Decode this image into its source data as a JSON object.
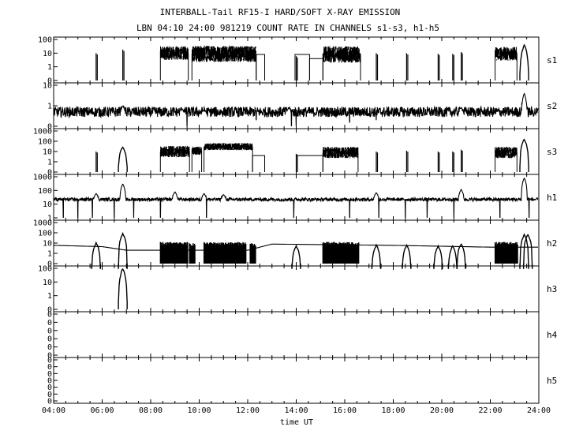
{
  "chart_data": {
    "type": "line",
    "title": "INTERBALL-Tail RF15-I HARD/SOFT X-RAY EMISSION",
    "subtitle": "LBN 04:10 24:00 981219  COUNT RATE IN CHANNELS s1-s3, h1-h5",
    "xlabel": "time UT",
    "xlim": [
      4,
      24
    ],
    "x_ticks": [
      4,
      6,
      8,
      10,
      12,
      14,
      16,
      18,
      20,
      22,
      24
    ],
    "x_tick_labels": [
      "04:00",
      "06:00",
      "08:00",
      "10:00",
      "12:00",
      "14:00",
      "16:00",
      "18:00",
      "20:00",
      "22:00",
      "24:00"
    ],
    "y_scale": "log",
    "grid": false,
    "panels": [
      {
        "name": "s1",
        "y_tick_labels": [
          "100",
          "10",
          "1",
          "0"
        ],
        "baseline": "0",
        "noise_segments": [
          [
            8.4,
            9.55,
            10,
            0.5
          ],
          [
            9.7,
            12.35,
            9,
            0.6
          ],
          [
            15.1,
            16.65,
            8,
            0.6
          ],
          [
            22.2,
            23.1,
            9,
            0.5
          ]
        ],
        "flat_segments": [
          [
            12.35,
            12.7,
            8
          ],
          [
            13.95,
            14.55,
            8
          ],
          [
            14.55,
            15.1,
            4
          ]
        ],
        "spikes": [
          [
            5.75,
            10
          ],
          [
            6.85,
            18
          ],
          [
            14.0,
            6
          ],
          [
            17.3,
            10
          ],
          [
            18.55,
            10
          ],
          [
            19.85,
            9
          ],
          [
            20.45,
            9
          ],
          [
            20.8,
            12
          ],
          [
            23.4,
            40
          ]
        ]
      },
      {
        "name": "s2",
        "y_tick_labels": [
          "10",
          "1",
          "0"
        ],
        "baseline": "continuous",
        "base_level": 5,
        "noise_amp": 0.25,
        "bumps": [
          [
            6.85,
            10
          ],
          [
            9.3,
            7
          ],
          [
            10.2,
            6
          ],
          [
            12.9,
            3
          ],
          [
            13.7,
            8
          ],
          [
            20.8,
            8
          ],
          [
            23.4,
            40
          ]
        ],
        "dropouts": [
          [
            7.8,
            3
          ],
          [
            9.5,
            1
          ],
          [
            12.35,
            2
          ],
          [
            13.8,
            1
          ],
          [
            14.0,
            1
          ],
          [
            16.2,
            1.5
          ],
          [
            17.3,
            2
          ]
        ]
      },
      {
        "name": "s3",
        "y_tick_labels": [
          "1000",
          "100",
          "10",
          "1",
          "0"
        ],
        "baseline": "0",
        "noise_segments": [
          [
            8.4,
            9.6,
            10,
            0.55
          ],
          [
            9.7,
            10.1,
            12,
            0.4
          ],
          [
            10.2,
            12.2,
            30,
            0.35
          ],
          [
            15.1,
            16.55,
            8,
            0.55
          ],
          [
            22.2,
            23.1,
            8,
            0.55
          ]
        ],
        "flat_segments": [
          [
            12.2,
            12.7,
            4
          ],
          [
            14.0,
            15.1,
            4
          ]
        ],
        "spikes": [
          [
            5.75,
            10
          ],
          [
            6.85,
            30
          ],
          [
            14.0,
            6
          ],
          [
            17.3,
            10
          ],
          [
            18.55,
            12
          ],
          [
            19.85,
            10
          ],
          [
            20.45,
            10
          ],
          [
            20.8,
            15
          ],
          [
            23.4,
            150
          ]
        ]
      },
      {
        "name": "h1",
        "y_tick_labels": [
          "1000",
          "100",
          "10",
          "1"
        ],
        "baseline": "continuous",
        "base_level": 22,
        "noise_amp": 0.12,
        "bumps": [
          [
            5.75,
            60
          ],
          [
            6.85,
            300
          ],
          [
            9.0,
            80
          ],
          [
            10.2,
            60
          ],
          [
            11.0,
            50
          ],
          [
            17.3,
            70
          ],
          [
            20.8,
            120
          ],
          [
            23.4,
            800
          ]
        ],
        "dropouts": [
          [
            4.4,
            1
          ],
          [
            5.0,
            1
          ],
          [
            5.6,
            1
          ],
          [
            6.5,
            1
          ],
          [
            7.3,
            1
          ],
          [
            8.4,
            1
          ],
          [
            10.3,
            1
          ],
          [
            13.9,
            1
          ],
          [
            16.2,
            1
          ],
          [
            17.4,
            1
          ],
          [
            18.5,
            1
          ],
          [
            19.4,
            1
          ],
          [
            20.5,
            1
          ],
          [
            22.4,
            1
          ],
          [
            23.6,
            1
          ]
        ]
      },
      {
        "name": "h2",
        "y_tick_labels": [
          "1000",
          "100",
          "10",
          "1",
          "0"
        ],
        "baseline": "trend",
        "trend": [
          [
            4,
            60
          ],
          [
            6,
            45
          ],
          [
            7,
            20
          ],
          [
            12,
            20
          ],
          [
            13,
            80
          ],
          [
            18,
            60
          ],
          [
            22,
            40
          ],
          [
            24,
            40
          ]
        ],
        "burst_segments": [
          [
            8.4,
            9.5,
            100,
            22
          ],
          [
            9.6,
            9.8,
            80,
            4
          ],
          [
            10.2,
            11.9,
            100,
            34
          ],
          [
            12.1,
            12.3,
            80,
            4
          ],
          [
            15.1,
            16.55,
            100,
            30
          ],
          [
            22.2,
            23.1,
            100,
            18
          ]
        ],
        "spikes": [
          [
            5.75,
            100
          ],
          [
            6.85,
            800
          ],
          [
            14.0,
            50
          ],
          [
            17.3,
            60
          ],
          [
            18.55,
            60
          ],
          [
            19.85,
            50
          ],
          [
            20.45,
            50
          ],
          [
            20.8,
            80
          ],
          [
            23.4,
            600
          ],
          [
            23.55,
            700
          ]
        ]
      },
      {
        "name": "h3",
        "y_tick_labels": [
          "100",
          "10",
          "1",
          "0"
        ],
        "baseline": "0",
        "spikes": [
          [
            6.85,
            100
          ]
        ]
      },
      {
        "name": "h4",
        "y_tick_labels": [
          "0",
          "0",
          "0",
          "0",
          "0",
          "0"
        ],
        "baseline": "0"
      },
      {
        "name": "h5",
        "y_tick_labels": [
          "0",
          "0",
          "0",
          "0",
          "0",
          "0",
          "0"
        ],
        "baseline": "0"
      }
    ]
  }
}
